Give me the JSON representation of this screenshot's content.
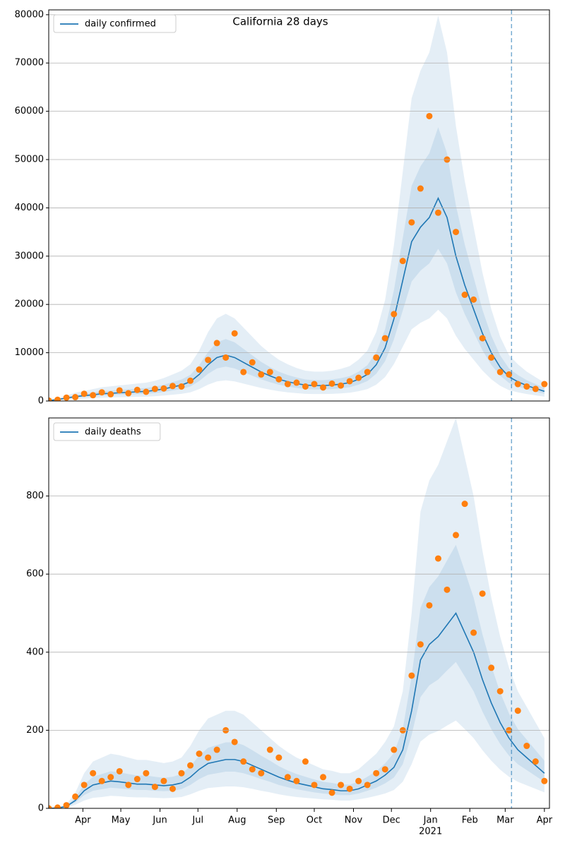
{
  "chart_data": [
    {
      "type": "line",
      "title": "California 28 days",
      "x": [
        0,
        7,
        14,
        21,
        28,
        35,
        42,
        49,
        56,
        63,
        70,
        77,
        84,
        91,
        98,
        105,
        112,
        119,
        126,
        133,
        140,
        147,
        154,
        161,
        168,
        175,
        182,
        189,
        196,
        203,
        210,
        217,
        224,
        231,
        238,
        245,
        252,
        259,
        266,
        273,
        280,
        287,
        294,
        301,
        308,
        315,
        322,
        329,
        336,
        343,
        350,
        357,
        364,
        371,
        378,
        385,
        392
      ],
      "xlim": [
        0,
        396
      ],
      "ylim": [
        0,
        81000
      ],
      "yticks": [
        0,
        10000,
        20000,
        30000,
        40000,
        50000,
        60000,
        70000,
        80000
      ],
      "grid": true,
      "legend": "upper left",
      "vline": 366,
      "series": [
        {
          "name": "daily confirmed",
          "color": "#1f77b4",
          "values": [
            100,
            300,
            600,
            900,
            1100,
            1300,
            1500,
            1600,
            1700,
            1800,
            1900,
            2000,
            2200,
            2500,
            2900,
            3300,
            4000,
            5500,
            7500,
            9000,
            9500,
            9000,
            8000,
            7000,
            6000,
            5200,
            4500,
            4000,
            3600,
            3300,
            3200,
            3200,
            3300,
            3500,
            3800,
            4500,
            5500,
            7500,
            11000,
            17000,
            25000,
            33000,
            36000,
            38000,
            42000,
            38000,
            30000,
            24000,
            19000,
            14000,
            10000,
            7000,
            5000,
            4000,
            3200,
            2600,
            2000
          ]
        }
      ],
      "scatter": {
        "color": "#ff7f0e",
        "values": [
          100,
          250,
          700,
          800,
          1500,
          1200,
          1800,
          1400,
          2200,
          1600,
          2300,
          1900,
          2500,
          2600,
          3100,
          3000,
          4200,
          6500,
          8500,
          12000,
          9000,
          14000,
          6000,
          8000,
          5500,
          6000,
          4500,
          3500,
          3800,
          3000,
          3500,
          2800,
          3600,
          3200,
          4100,
          4800,
          6000,
          9000,
          13000,
          18000,
          29000,
          37000,
          44000,
          59000,
          39000,
          50000,
          35000,
          22000,
          21000,
          13000,
          9000,
          6000,
          5500,
          3500,
          3000,
          2500,
          3500
        ]
      },
      "bands": [
        {
          "lower": [
            45,
            135,
            270,
            405,
            495,
            585,
            675,
            720,
            765,
            810,
            855,
            900,
            990,
            1125,
            1305,
            1485,
            1800,
            2475,
            3375,
            4050,
            4275,
            4050,
            3600,
            3150,
            2700,
            2340,
            2025,
            1800,
            1620,
            1485,
            1440,
            1440,
            1485,
            1575,
            1710,
            2025,
            2475,
            3375,
            4950,
            7650,
            11250,
            14850,
            16200,
            17100,
            18900,
            17100,
            13500,
            10800,
            8550,
            6300,
            4500,
            3150,
            2250,
            1800,
            1440,
            1170,
            900
          ],
          "upper": [
            190,
            570,
            1140,
            1710,
            2090,
            2470,
            2850,
            3040,
            3230,
            3420,
            3610,
            3800,
            4180,
            4750,
            5510,
            6270,
            7600,
            10450,
            14250,
            17100,
            18050,
            17100,
            15200,
            13300,
            11400,
            9880,
            8550,
            7600,
            6840,
            6270,
            6080,
            6080,
            6270,
            6650,
            7220,
            8550,
            10450,
            14250,
            20900,
            32300,
            47500,
            62700,
            68400,
            72200,
            79800,
            72200,
            57000,
            45600,
            36100,
            26600,
            19000,
            13300,
            9500,
            7600,
            6080,
            4940,
            3800
          ]
        },
        {
          "lower": [
            75,
            225,
            450,
            675,
            825,
            975,
            1125,
            1200,
            1275,
            1350,
            1425,
            1500,
            1650,
            1875,
            2175,
            2475,
            3000,
            4125,
            5625,
            6750,
            7125,
            6750,
            6000,
            5250,
            4500,
            3900,
            3375,
            3000,
            2700,
            2475,
            2400,
            2400,
            2475,
            2625,
            2850,
            3375,
            4125,
            5625,
            8250,
            12750,
            18750,
            24750,
            27000,
            28500,
            31500,
            28500,
            22500,
            18000,
            14250,
            10500,
            7500,
            5250,
            3750,
            3000,
            2400,
            1950,
            1500
          ],
          "upper": [
            135,
            405,
            810,
            1215,
            1485,
            1755,
            2025,
            2160,
            2295,
            2430,
            2565,
            2700,
            2970,
            3375,
            3915,
            4455,
            5400,
            7425,
            10125,
            12150,
            12825,
            12150,
            10800,
            9450,
            8100,
            7020,
            6075,
            5400,
            4860,
            4455,
            4320,
            4320,
            4455,
            4725,
            5130,
            6075,
            7425,
            10125,
            14850,
            22950,
            33750,
            44550,
            48600,
            51300,
            56700,
            51300,
            40500,
            32400,
            25650,
            18900,
            13500,
            9450,
            6750,
            5400,
            4320,
            3510,
            2700
          ]
        }
      ]
    },
    {
      "type": "line",
      "x": [
        0,
        7,
        14,
        21,
        28,
        35,
        42,
        49,
        56,
        63,
        70,
        77,
        84,
        91,
        98,
        105,
        112,
        119,
        126,
        133,
        140,
        147,
        154,
        161,
        168,
        175,
        182,
        189,
        196,
        203,
        210,
        217,
        224,
        231,
        238,
        245,
        252,
        259,
        266,
        273,
        280,
        287,
        294,
        301,
        308,
        315,
        322,
        329,
        336,
        343,
        350,
        357,
        364,
        371,
        378,
        385,
        392
      ],
      "xlim": [
        0,
        396
      ],
      "ylim": [
        0,
        1000
      ],
      "xticks": [
        {
          "value": 27,
          "label": "Apr"
        },
        {
          "value": 57,
          "label": "May"
        },
        {
          "value": 88,
          "label": "Jun"
        },
        {
          "value": 118,
          "label": "Jul"
        },
        {
          "value": 149,
          "label": "Aug"
        },
        {
          "value": 180,
          "label": "Sep"
        },
        {
          "value": 210,
          "label": "Oct"
        },
        {
          "value": 241,
          "label": "Nov"
        },
        {
          "value": 271,
          "label": "Dec"
        },
        {
          "value": 302,
          "label": "Jan"
        },
        {
          "value": 333,
          "label": "Feb"
        },
        {
          "value": 361,
          "label": "Mar"
        },
        {
          "value": 392,
          "label": "Apr"
        }
      ],
      "x_year_label": "2021",
      "yticks": [
        0,
        200,
        400,
        600,
        800
      ],
      "grid": true,
      "legend": "upper left",
      "vline": 366,
      "series": [
        {
          "name": "daily deaths",
          "color": "#1f77b4",
          "values": [
            0,
            1,
            5,
            20,
            45,
            60,
            65,
            70,
            68,
            65,
            62,
            62,
            60,
            58,
            60,
            65,
            80,
            100,
            115,
            120,
            125,
            125,
            120,
            110,
            100,
            90,
            80,
            72,
            65,
            60,
            55,
            50,
            48,
            45,
            45,
            50,
            60,
            70,
            85,
            105,
            150,
            250,
            380,
            420,
            440,
            470,
            500,
            450,
            400,
            330,
            270,
            220,
            180,
            150,
            130,
            110,
            90
          ]
        }
      ],
      "scatter": {
        "color": "#ff7f0e",
        "values": [
          0,
          2,
          8,
          30,
          60,
          90,
          70,
          80,
          95,
          60,
          75,
          90,
          55,
          70,
          50,
          90,
          110,
          140,
          130,
          150,
          200,
          170,
          120,
          100,
          90,
          150,
          130,
          80,
          70,
          120,
          60,
          80,
          40,
          60,
          50,
          70,
          60,
          90,
          100,
          150,
          200,
          340,
          420,
          520,
          640,
          560,
          700,
          780,
          450,
          550,
          360,
          300,
          200,
          250,
          160,
          120,
          70
        ]
      },
      "bands": [
        {
          "lower": [
            0,
            0,
            2,
            9,
            20,
            27,
            29,
            32,
            31,
            29,
            28,
            28,
            27,
            26,
            27,
            29,
            36,
            45,
            52,
            54,
            56,
            56,
            54,
            50,
            45,
            41,
            36,
            32,
            29,
            27,
            25,
            23,
            22,
            20,
            20,
            23,
            27,
            32,
            38,
            47,
            68,
            113,
            171,
            189,
            198,
            212,
            225,
            203,
            180,
            149,
            122,
            99,
            81,
            68,
            59,
            50,
            41
          ],
          "upper": [
            0,
            2,
            10,
            40,
            90,
            120,
            130,
            140,
            136,
            130,
            124,
            124,
            120,
            116,
            120,
            130,
            160,
            200,
            230,
            240,
            250,
            250,
            240,
            220,
            200,
            180,
            160,
            144,
            130,
            120,
            110,
            100,
            96,
            90,
            90,
            100,
            120,
            140,
            170,
            210,
            300,
            500,
            760,
            840,
            880,
            940,
            1000,
            900,
            800,
            660,
            540,
            440,
            360,
            300,
            260,
            220,
            180
          ]
        },
        {
          "lower": [
            0,
            1,
            4,
            15,
            34,
            45,
            49,
            53,
            51,
            49,
            47,
            47,
            45,
            44,
            45,
            49,
            60,
            75,
            86,
            90,
            94,
            94,
            90,
            83,
            75,
            68,
            60,
            54,
            49,
            45,
            41,
            38,
            36,
            34,
            34,
            38,
            45,
            53,
            64,
            79,
            113,
            188,
            285,
            315,
            330,
            353,
            375,
            338,
            300,
            248,
            203,
            165,
            135,
            113,
            98,
            83,
            68
          ],
          "upper": [
            0,
            1,
            7,
            27,
            61,
            81,
            88,
            95,
            92,
            88,
            84,
            84,
            81,
            78,
            81,
            88,
            108,
            135,
            155,
            162,
            169,
            169,
            162,
            149,
            135,
            122,
            108,
            97,
            88,
            81,
            74,
            68,
            65,
            61,
            61,
            68,
            81,
            95,
            115,
            142,
            203,
            338,
            513,
            567,
            594,
            635,
            675,
            608,
            540,
            446,
            365,
            297,
            243,
            203,
            176,
            149,
            122
          ]
        }
      ]
    }
  ]
}
